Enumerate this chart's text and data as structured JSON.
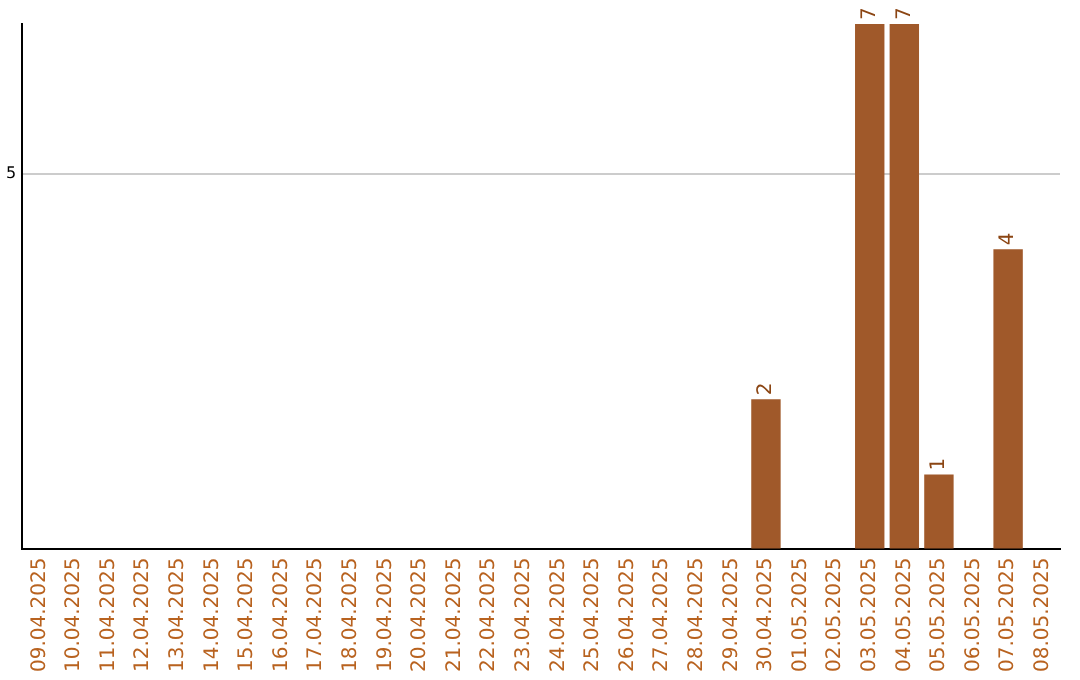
{
  "chart_data": {
    "type": "bar",
    "categories": [
      "09.04.2025",
      "10.04.2025",
      "11.04.2025",
      "12.04.2025",
      "13.04.2025",
      "14.04.2025",
      "15.04.2025",
      "16.04.2025",
      "17.04.2025",
      "18.04.2025",
      "19.04.2025",
      "20.04.2025",
      "21.04.2025",
      "22.04.2025",
      "23.04.2025",
      "24.04.2025",
      "25.04.2025",
      "26.04.2025",
      "27.04.2025",
      "28.04.2025",
      "29.04.2025",
      "30.04.2025",
      "01.05.2025",
      "02.05.2025",
      "03.05.2025",
      "04.05.2025",
      "05.05.2025",
      "06.05.2025",
      "07.05.2025",
      "08.05.2025"
    ],
    "values": [
      null,
      null,
      null,
      null,
      null,
      null,
      null,
      null,
      null,
      null,
      null,
      null,
      null,
      null,
      null,
      null,
      null,
      null,
      null,
      null,
      null,
      2,
      null,
      null,
      7,
      7,
      1,
      null,
      4,
      null
    ],
    "color": "#a0592a",
    "ylim": [
      0,
      7
    ],
    "yticks": [
      {
        "value": 0,
        "label": null
      },
      5
    ],
    "grid": "y",
    "legend": false,
    "data_labels": true
  }
}
